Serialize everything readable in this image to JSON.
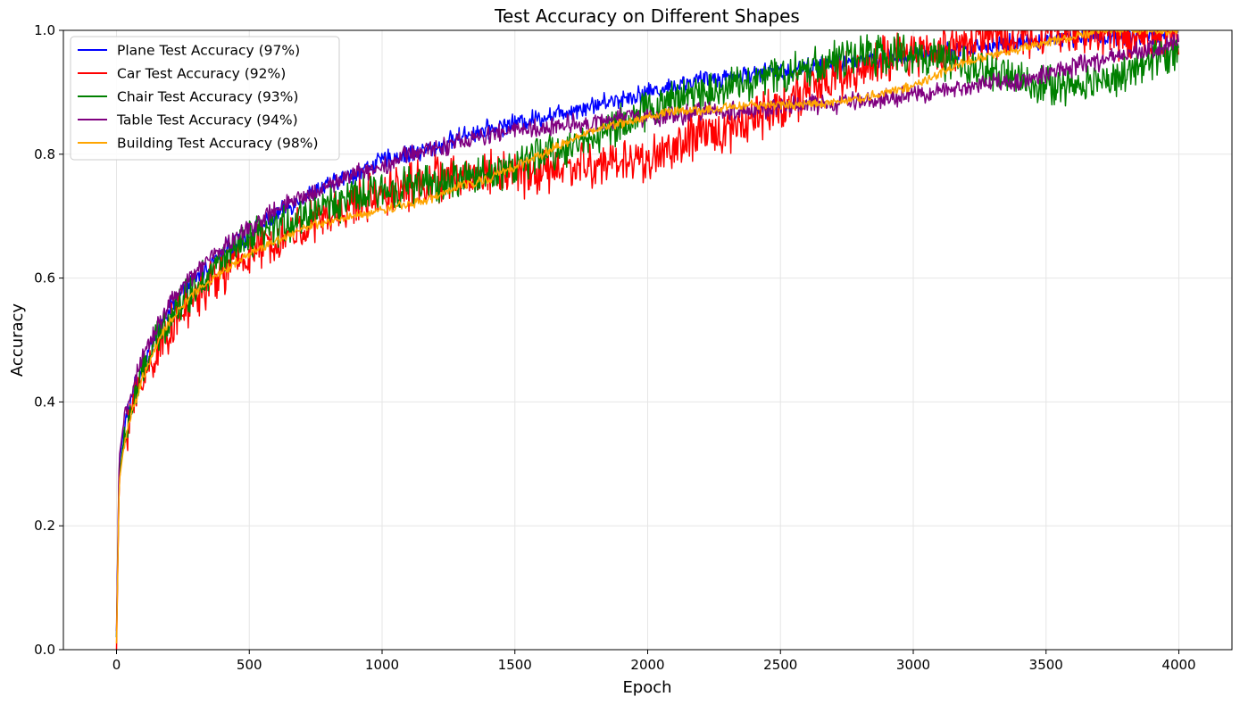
{
  "chart_data": {
    "type": "line",
    "title": "Test Accuracy on Different Shapes",
    "xlabel": "Epoch",
    "ylabel": "Accuracy",
    "xlim": [
      -200,
      4200
    ],
    "ylim": [
      0,
      1.0
    ],
    "xticks": [
      0,
      500,
      1000,
      1500,
      2000,
      2500,
      3000,
      3500,
      4000
    ],
    "yticks": [
      0.0,
      0.2,
      0.4,
      0.6,
      0.8,
      1.0
    ],
    "xtick_labels": [
      "0",
      "500",
      "1000",
      "1500",
      "2000",
      "2500",
      "3000",
      "3500",
      "4000"
    ],
    "ytick_labels": [
      "0.0",
      "0.2",
      "0.4",
      "0.6",
      "0.8",
      "1.0"
    ],
    "grid": true,
    "legend_position": "top-left",
    "x": [
      0,
      10,
      25,
      50,
      100,
      150,
      200,
      300,
      400,
      500,
      600,
      700,
      800,
      900,
      1000,
      1100,
      1200,
      1300,
      1400,
      1500,
      1600,
      1700,
      1800,
      1900,
      2000,
      2100,
      2200,
      2300,
      2400,
      2500,
      2600,
      2700,
      2800,
      2900,
      3000,
      3100,
      3200,
      3300,
      3400,
      3500,
      3600,
      3700,
      3800,
      3900,
      4000
    ],
    "series": [
      {
        "name": "Plane Test Accuracy (97%)",
        "color": "#0000ff",
        "noise": 0.012,
        "values": [
          0.02,
          0.3,
          0.35,
          0.4,
          0.46,
          0.51,
          0.55,
          0.6,
          0.64,
          0.67,
          0.7,
          0.73,
          0.75,
          0.77,
          0.79,
          0.8,
          0.81,
          0.83,
          0.84,
          0.85,
          0.86,
          0.87,
          0.88,
          0.89,
          0.9,
          0.91,
          0.92,
          0.925,
          0.93,
          0.935,
          0.94,
          0.945,
          0.95,
          0.955,
          0.96,
          0.965,
          0.97,
          0.975,
          0.98,
          0.985,
          0.99,
          0.99,
          0.99,
          0.99,
          1.0
        ]
      },
      {
        "name": "Car Test Accuracy (92%)",
        "color": "#ff0000",
        "noise": 0.03,
        "values": [
          0.0,
          0.27,
          0.33,
          0.38,
          0.44,
          0.48,
          0.52,
          0.57,
          0.61,
          0.64,
          0.66,
          0.68,
          0.7,
          0.72,
          0.74,
          0.75,
          0.76,
          0.76,
          0.77,
          0.77,
          0.77,
          0.78,
          0.78,
          0.79,
          0.79,
          0.81,
          0.83,
          0.84,
          0.86,
          0.88,
          0.9,
          0.92,
          0.94,
          0.95,
          0.96,
          0.97,
          0.98,
          0.99,
          0.99,
          1.0,
          1.0,
          1.0,
          0.99,
          0.99,
          0.99
        ]
      },
      {
        "name": "Chair Test Accuracy (93%)",
        "color": "#008000",
        "noise": 0.025,
        "values": [
          0.02,
          0.28,
          0.33,
          0.38,
          0.45,
          0.5,
          0.54,
          0.59,
          0.63,
          0.66,
          0.68,
          0.7,
          0.72,
          0.73,
          0.74,
          0.75,
          0.75,
          0.76,
          0.77,
          0.78,
          0.8,
          0.81,
          0.83,
          0.85,
          0.87,
          0.89,
          0.9,
          0.91,
          0.92,
          0.93,
          0.94,
          0.95,
          0.96,
          0.96,
          0.96,
          0.95,
          0.94,
          0.93,
          0.92,
          0.91,
          0.91,
          0.92,
          0.93,
          0.95,
          0.97
        ]
      },
      {
        "name": "Table Test Accuracy (94%)",
        "color": "#800080",
        "noise": 0.012,
        "values": [
          0.03,
          0.31,
          0.36,
          0.41,
          0.47,
          0.52,
          0.56,
          0.61,
          0.65,
          0.68,
          0.71,
          0.73,
          0.75,
          0.77,
          0.78,
          0.8,
          0.81,
          0.82,
          0.83,
          0.84,
          0.84,
          0.85,
          0.85,
          0.86,
          0.86,
          0.86,
          0.87,
          0.87,
          0.87,
          0.875,
          0.88,
          0.88,
          0.885,
          0.89,
          0.895,
          0.9,
          0.91,
          0.915,
          0.92,
          0.93,
          0.94,
          0.95,
          0.96,
          0.97,
          0.98
        ]
      },
      {
        "name": "Building Test Accuracy (98%)",
        "color": "#ffa500",
        "noise": 0.006,
        "values": [
          0.01,
          0.27,
          0.32,
          0.37,
          0.44,
          0.49,
          0.53,
          0.58,
          0.61,
          0.64,
          0.66,
          0.68,
          0.69,
          0.7,
          0.71,
          0.72,
          0.73,
          0.75,
          0.76,
          0.78,
          0.8,
          0.82,
          0.84,
          0.85,
          0.86,
          0.87,
          0.87,
          0.875,
          0.88,
          0.88,
          0.88,
          0.885,
          0.89,
          0.9,
          0.91,
          0.93,
          0.95,
          0.96,
          0.97,
          0.98,
          0.99,
          1.0,
          1.0,
          1.0,
          1.0
        ]
      }
    ]
  }
}
